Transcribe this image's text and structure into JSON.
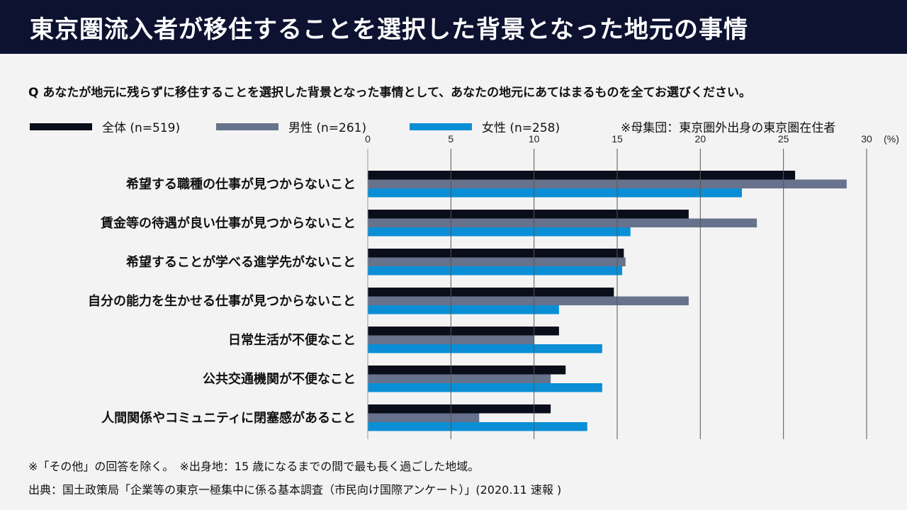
{
  "title": "東京圏流入者が移住することを選択した背景となった地元の事情",
  "question": "Q あなたが地元に残らずに移住することを選択した背景となった事情として、あなたの地元にあてはまるものを全てお選びください。",
  "population_note": "※母集団：東京圏外出身の東京圏在住者",
  "footnote1": "※「その他」の回答を除く。　※出身地：15 歳になるまでの間で最も長く過ごした地域。",
  "source": "出典：国土政策局「企業等の東京一極集中に係る基本調査（市民向け国際アンケート）」(2020.11 速報 )",
  "chart_data": {
    "type": "bar",
    "orientation": "horizontal",
    "xunit": "(%)",
    "xlim": [
      0,
      30
    ],
    "ticks": [
      "0",
      "5",
      "10",
      "15",
      "20",
      "25",
      "30"
    ],
    "grid": true,
    "legend_placement": "top",
    "categories": [
      "希望する職種の仕事が見つからないこと",
      "賃金等の待遇が良い仕事が見つからないこと",
      "希望することが学べる進学先がないこと",
      "自分の能力を生かせる仕事が見つからないこと",
      "日常生活が不便なこと",
      "公共交通機関が不便なこと",
      "人間関係やコミュニティに閉塞感があること"
    ],
    "series": [
      {
        "name": "全体 (n=519)",
        "color": "#0a0d1a",
        "values": [
          25.7,
          19.3,
          15.4,
          14.8,
          11.5,
          11.9,
          11.0
        ]
      },
      {
        "name": "男性 (n=261)",
        "color": "#67728c",
        "values": [
          28.8,
          23.4,
          15.5,
          19.3,
          10.0,
          11.0,
          6.7
        ]
      },
      {
        "name": "女性 (n=258)",
        "color": "#0a8fd6",
        "values": [
          22.5,
          15.8,
          15.3,
          11.5,
          14.1,
          14.1,
          13.2
        ]
      }
    ]
  }
}
